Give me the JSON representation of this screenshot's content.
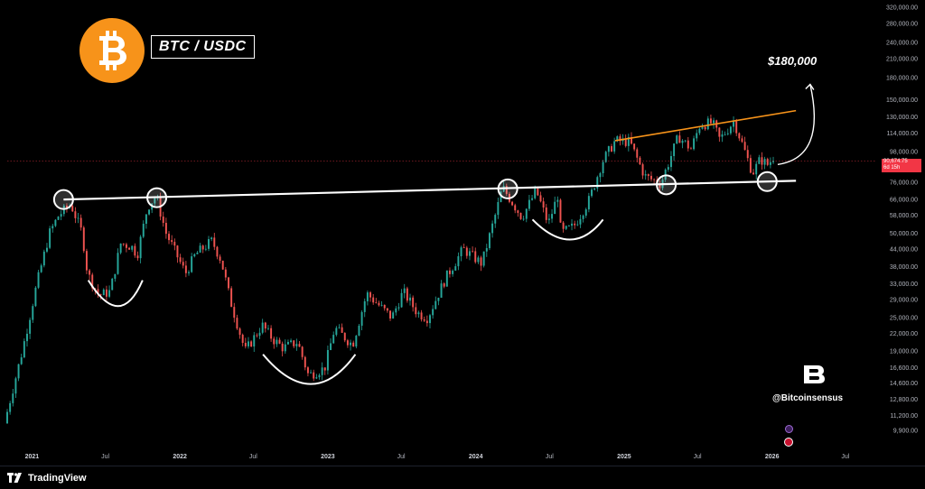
{
  "branding": {
    "pair": "BTC / USDC",
    "target": "$180,000",
    "handle": "@Bitcoinsensus",
    "platform": "TradingView",
    "logo_icon": "bitcoin-icon",
    "brand_icon": "bitcoinsensus-b-icon",
    "platform_icon": "tradingview-icon"
  },
  "price_badge": {
    "price": "90,674.75",
    "countdown": "6d 15h"
  },
  "colors": {
    "up": "#26a69a",
    "down": "#ef5350",
    "resistance": "#ffffff",
    "upper_trend": "#f7931a",
    "badge": "#f23645",
    "logo": "#f7931a"
  },
  "chart_data": {
    "type": "candlestick",
    "x_axis": {
      "labels": [
        "2021",
        "Jul",
        "2022",
        "Jul",
        "2023",
        "Jul",
        "2024",
        "Jul",
        "2025",
        "Jul",
        "2026",
        "Jul"
      ],
      "dates": [
        "2021-01-01",
        "2021-07-01",
        "2022-01-01",
        "2022-07-01",
        "2023-01-01",
        "2023-07-01",
        "2024-01-01",
        "2024-07-01",
        "2025-01-01",
        "2025-07-01",
        "2026-01-01",
        "2026-07-01"
      ],
      "range": [
        "2020-11-01",
        "2026-09-15"
      ]
    },
    "y_axis": {
      "scale": "log",
      "range": [
        9000,
        330000
      ],
      "tick_values": [
        9900,
        11200,
        12800,
        14600,
        16600,
        19000,
        22000,
        25000,
        29000,
        33000,
        38000,
        44000,
        50000,
        58000,
        66000,
        76000,
        88000,
        98000,
        114000,
        130000,
        150000,
        180000,
        210000,
        240000,
        280000,
        320000
      ],
      "tick_labels": [
        "9,900.00",
        "11,200.00",
        "12,800.00",
        "14,600.00",
        "16,600.00",
        "19,000.00",
        "22,000.00",
        "25,000.00",
        "29,000.00",
        "33,000.00",
        "38,000.00",
        "44,000.00",
        "50,000.00",
        "58,000.00",
        "66,000.00",
        "76,000.00",
        "88,000.00",
        "98,000.00",
        "114,000.00",
        "130,000.00",
        "150,000.00",
        "180,000.00",
        "210,000.00",
        "240,000.00",
        "280,000.00",
        "320,000.00"
      ]
    },
    "price_path": [
      {
        "date": "2020-11-01",
        "price": 10500
      },
      {
        "date": "2020-12-15",
        "price": 19000
      },
      {
        "date": "2021-01-20",
        "price": 33000
      },
      {
        "date": "2021-02-20",
        "price": 50000
      },
      {
        "date": "2021-03-15",
        "price": 58000
      },
      {
        "date": "2021-04-14",
        "price": 63500
      },
      {
        "date": "2021-05-12",
        "price": 50000
      },
      {
        "date": "2021-05-25",
        "price": 36000
      },
      {
        "date": "2021-06-22",
        "price": 30000
      },
      {
        "date": "2021-07-20",
        "price": 31000
      },
      {
        "date": "2021-08-15",
        "price": 46000
      },
      {
        "date": "2021-09-10",
        "price": 45000
      },
      {
        "date": "2021-09-25",
        "price": 42000
      },
      {
        "date": "2021-10-20",
        "price": 62000
      },
      {
        "date": "2021-11-10",
        "price": 68000
      },
      {
        "date": "2021-12-05",
        "price": 50000
      },
      {
        "date": "2022-01-22",
        "price": 36000
      },
      {
        "date": "2022-02-15",
        "price": 42000
      },
      {
        "date": "2022-03-28",
        "price": 47000
      },
      {
        "date": "2022-04-20",
        "price": 40000
      },
      {
        "date": "2022-05-12",
        "price": 29000
      },
      {
        "date": "2022-06-18",
        "price": 19000
      },
      {
        "date": "2022-07-30",
        "price": 23500
      },
      {
        "date": "2022-08-25",
        "price": 21000
      },
      {
        "date": "2022-09-20",
        "price": 19500
      },
      {
        "date": "2022-10-25",
        "price": 20500
      },
      {
        "date": "2022-11-21",
        "price": 15600
      },
      {
        "date": "2022-12-31",
        "price": 16500
      },
      {
        "date": "2023-01-25",
        "price": 23000
      },
      {
        "date": "2023-03-10",
        "price": 20000
      },
      {
        "date": "2023-04-14",
        "price": 30500
      },
      {
        "date": "2023-06-15",
        "price": 25000
      },
      {
        "date": "2023-07-13",
        "price": 31000
      },
      {
        "date": "2023-08-17",
        "price": 26000
      },
      {
        "date": "2023-09-11",
        "price": 25000
      },
      {
        "date": "2023-10-25",
        "price": 34500
      },
      {
        "date": "2023-12-08",
        "price": 44000
      },
      {
        "date": "2024-01-23",
        "price": 39000
      },
      {
        "date": "2024-02-28",
        "price": 60000
      },
      {
        "date": "2024-03-14",
        "price": 73000
      },
      {
        "date": "2024-05-01",
        "price": 57000
      },
      {
        "date": "2024-06-05",
        "price": 71000
      },
      {
        "date": "2024-07-05",
        "price": 54000
      },
      {
        "date": "2024-07-29",
        "price": 69000
      },
      {
        "date": "2024-08-05",
        "price": 50000
      },
      {
        "date": "2024-09-06",
        "price": 53000
      },
      {
        "date": "2024-10-14",
        "price": 66000
      },
      {
        "date": "2024-11-15",
        "price": 90000
      },
      {
        "date": "2024-12-17",
        "price": 107000
      },
      {
        "date": "2025-01-22",
        "price": 106000
      },
      {
        "date": "2025-02-28",
        "price": 80000
      },
      {
        "date": "2025-04-08",
        "price": 75000
      },
      {
        "date": "2025-05-22",
        "price": 111000
      },
      {
        "date": "2025-06-22",
        "price": 100000
      },
      {
        "date": "2025-07-14",
        "price": 122000
      },
      {
        "date": "2025-08-14",
        "price": 124000
      },
      {
        "date": "2025-09-01",
        "price": 108000
      },
      {
        "date": "2025-10-06",
        "price": 126000
      },
      {
        "date": "2025-11-21",
        "price": 82000
      },
      {
        "date": "2025-12-10",
        "price": 92000
      },
      {
        "date": "2025-12-28",
        "price": 88000
      },
      {
        "date": "2026-01-05",
        "price": 90674.75
      }
    ],
    "annotations": {
      "current_price": 90674.75,
      "resistance_line": {
        "from": {
          "date": "2021-03-20",
          "price": 66000
        },
        "to": {
          "date": "2026-03-01",
          "price": 77000
        }
      },
      "upper_trend_line": {
        "from": {
          "date": "2024-12-10",
          "price": 107000
        },
        "to": {
          "date": "2026-03-01",
          "price": 137000
        }
      },
      "touch_points": [
        {
          "date": "2021-03-20",
          "price": 66000
        },
        {
          "date": "2021-11-05",
          "price": 67000
        },
        {
          "date": "2024-03-20",
          "price": 72000
        },
        {
          "date": "2025-04-15",
          "price": 74500
        },
        {
          "date": "2025-12-20",
          "price": 76500
        }
      ],
      "bowls": [
        {
          "from": {
            "date": "2021-05-20",
            "price": 34000
          },
          "bottom": {
            "date": "2021-08-01",
            "price": 27500
          },
          "to": {
            "date": "2021-10-01",
            "price": 34000
          }
        },
        {
          "from": {
            "date": "2022-07-25",
            "price": 18500
          },
          "bottom": {
            "date": "2022-11-20",
            "price": 14500
          },
          "to": {
            "date": "2023-03-10",
            "price": 18500
          }
        },
        {
          "from": {
            "date": "2024-05-20",
            "price": 56000
          },
          "bottom": {
            "date": "2024-08-20",
            "price": 47500
          },
          "to": {
            "date": "2024-11-10",
            "price": 56000
          }
        }
      ],
      "projection_arrow": {
        "from": {
          "date": "2026-01-15",
          "price": 88000
        },
        "to": {
          "date": "2026-04-05",
          "price": 170000
        }
      }
    }
  }
}
